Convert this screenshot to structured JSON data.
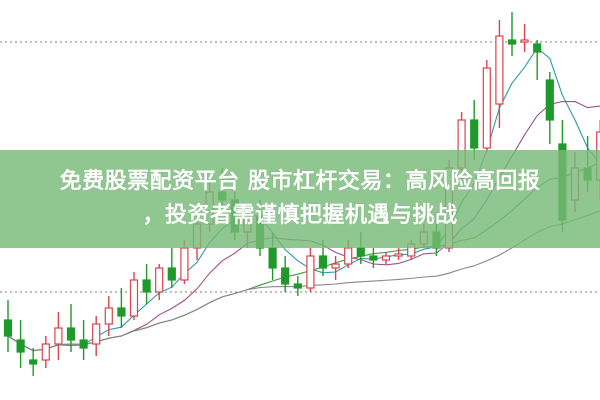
{
  "banner": {
    "line1": "免费股票配资平台 股市杠杆交易：高风险高回报",
    "line2": "，投资者需谨慎把握机遇与挑战"
  },
  "chart_data": {
    "type": "candlestick",
    "title": "",
    "grid": false,
    "reference_levels": [
      89.5,
      27
    ],
    "colors": {
      "up": "#d9434e",
      "down": "#1f9a2a",
      "ma": [
        "#2a9aa8",
        "#a0508a",
        "#3c9c3c",
        "#888888"
      ],
      "reference": "#999999"
    },
    "moving_average_periods": [
      5,
      10,
      20,
      40
    ],
    "candles": [
      {
        "o": 20,
        "h": 25,
        "l": 12,
        "c": 16
      },
      {
        "o": 15,
        "h": 20,
        "l": 8,
        "c": 12
      },
      {
        "o": 10,
        "h": 13,
        "l": 6,
        "c": 9
      },
      {
        "o": 10,
        "h": 16,
        "l": 8,
        "c": 14
      },
      {
        "o": 14,
        "h": 22,
        "l": 10,
        "c": 18
      },
      {
        "o": 18,
        "h": 24,
        "l": 12,
        "c": 15
      },
      {
        "o": 15,
        "h": 20,
        "l": 10,
        "c": 13
      },
      {
        "o": 14,
        "h": 21,
        "l": 11,
        "c": 19
      },
      {
        "o": 19,
        "h": 26,
        "l": 16,
        "c": 23
      },
      {
        "o": 23,
        "h": 28,
        "l": 18,
        "c": 21
      },
      {
        "o": 21,
        "h": 32,
        "l": 20,
        "c": 30
      },
      {
        "o": 30,
        "h": 34,
        "l": 24,
        "c": 27
      },
      {
        "o": 27,
        "h": 34,
        "l": 25,
        "c": 33
      },
      {
        "o": 33,
        "h": 38,
        "l": 28,
        "c": 30
      },
      {
        "o": 30,
        "h": 40,
        "l": 29,
        "c": 38
      },
      {
        "o": 38,
        "h": 47,
        "l": 35,
        "c": 44
      },
      {
        "o": 44,
        "h": 55,
        "l": 42,
        "c": 52
      },
      {
        "o": 52,
        "h": 58,
        "l": 48,
        "c": 50
      },
      {
        "o": 50,
        "h": 52,
        "l": 40,
        "c": 42
      },
      {
        "o": 42,
        "h": 48,
        "l": 38,
        "c": 46
      },
      {
        "o": 46,
        "h": 50,
        "l": 36,
        "c": 38
      },
      {
        "o": 38,
        "h": 42,
        "l": 30,
        "c": 33
      },
      {
        "o": 33,
        "h": 36,
        "l": 27,
        "c": 29
      },
      {
        "o": 29,
        "h": 31,
        "l": 26,
        "c": 28
      },
      {
        "o": 28,
        "h": 38,
        "l": 27,
        "c": 36
      },
      {
        "o": 36,
        "h": 40,
        "l": 31,
        "c": 33
      },
      {
        "o": 33,
        "h": 36,
        "l": 30,
        "c": 34
      },
      {
        "o": 34,
        "h": 40,
        "l": 33,
        "c": 38
      },
      {
        "o": 38,
        "h": 42,
        "l": 34,
        "c": 36
      },
      {
        "o": 36,
        "h": 38,
        "l": 33,
        "c": 35
      },
      {
        "o": 35,
        "h": 37,
        "l": 34,
        "c": 36
      },
      {
        "o": 36,
        "h": 38,
        "l": 35,
        "c": 36.5
      },
      {
        "o": 36,
        "h": 40,
        "l": 35,
        "c": 39
      },
      {
        "o": 39,
        "h": 44,
        "l": 38,
        "c": 42
      },
      {
        "o": 42,
        "h": 47,
        "l": 36,
        "c": 38
      },
      {
        "o": 38,
        "h": 60,
        "l": 37,
        "c": 58
      },
      {
        "o": 58,
        "h": 72,
        "l": 55,
        "c": 70
      },
      {
        "o": 70,
        "h": 75,
        "l": 60,
        "c": 63
      },
      {
        "o": 63,
        "h": 85,
        "l": 62,
        "c": 83
      },
      {
        "o": 74,
        "h": 95,
        "l": 68,
        "c": 91
      },
      {
        "o": 90,
        "h": 97,
        "l": 86,
        "c": 89
      },
      {
        "o": 89.5,
        "h": 94,
        "l": 87,
        "c": 90
      },
      {
        "o": 89,
        "h": 90,
        "l": 80,
        "c": 87
      },
      {
        "o": 80,
        "h": 82,
        "l": 64,
        "c": 70
      },
      {
        "o": 64,
        "h": 70,
        "l": 42,
        "c": 45
      },
      {
        "o": 50,
        "h": 62,
        "l": 47,
        "c": 58
      },
      {
        "o": 58,
        "h": 66,
        "l": 52,
        "c": 55
      },
      {
        "o": 55,
        "h": 70,
        "l": 50,
        "c": 67
      }
    ]
  }
}
